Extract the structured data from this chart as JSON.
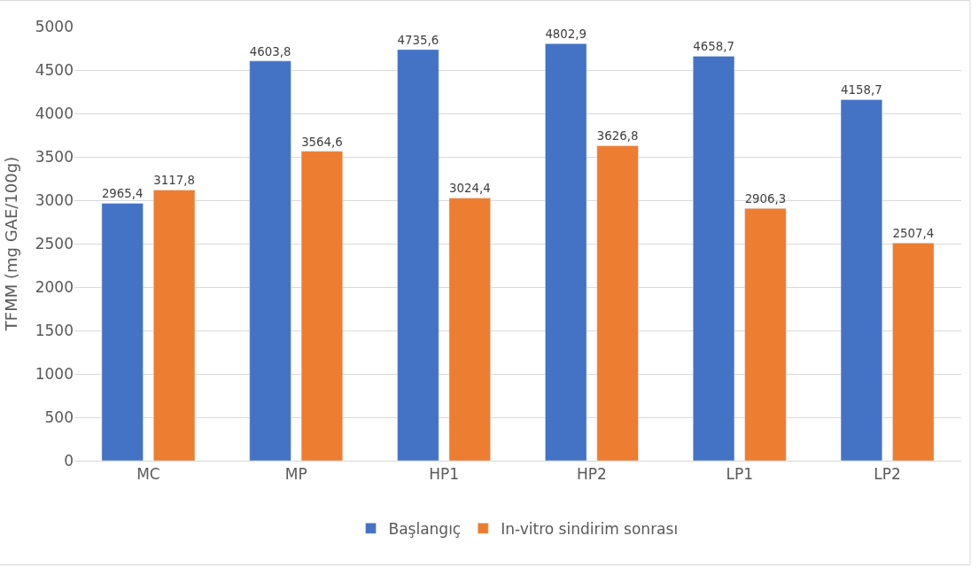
{
  "chart_data": {
    "type": "bar",
    "ylabel": "TFMM (mg GAE/100g)",
    "categories": [
      "MC",
      "MP",
      "HP1",
      "HP2",
      "LP1",
      "LP2"
    ],
    "series": [
      {
        "name": "Başlangıç",
        "color": "#4472c4",
        "values": [
          2965.4,
          4603.8,
          4735.6,
          4802.9,
          4658.7,
          4158.7
        ],
        "value_labels": [
          "2965,4",
          "4603,8",
          "4735,6",
          "4802,9",
          "4658,7",
          "4158,7"
        ]
      },
      {
        "name": "In-vitro sindirim sonrası",
        "color": "#ed7d31",
        "values": [
          3117.8,
          3564.6,
          3024.4,
          3626.8,
          2906.3,
          2507.4
        ],
        "value_labels": [
          "3117,8",
          "3564,6",
          "3024,4",
          "3626,8",
          "2906,3",
          "2507,4"
        ]
      }
    ],
    "ylim": [
      0,
      5000
    ],
    "yticks": [
      0,
      500,
      1000,
      1500,
      2000,
      2500,
      3000,
      3500,
      4000,
      4500,
      5000
    ],
    "grid": "y",
    "legend": "bottom"
  }
}
